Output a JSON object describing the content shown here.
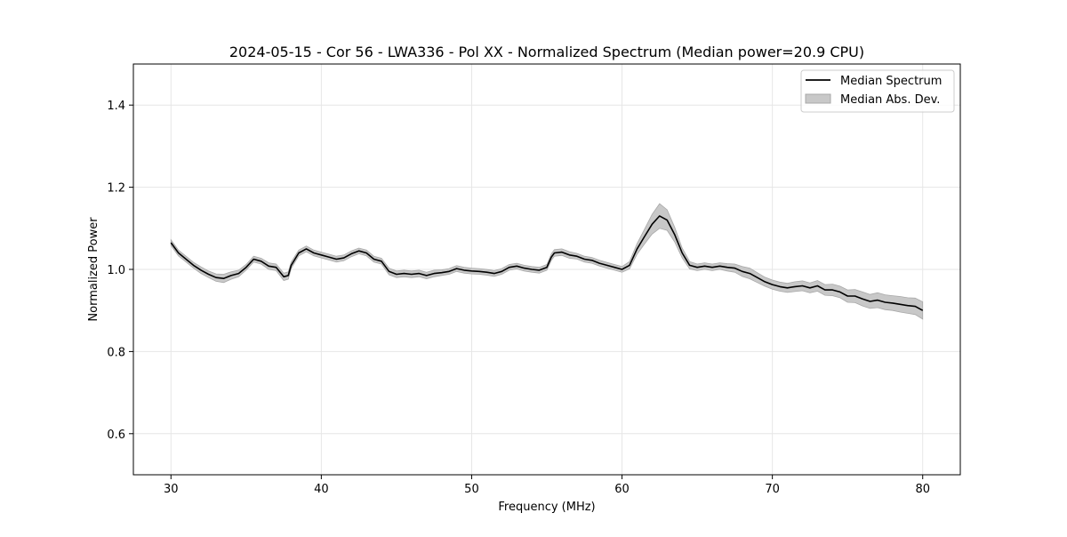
{
  "chart_data": {
    "type": "line",
    "title": "2024-05-15 - Cor 56 - LWA336 - Pol XX - Normalized Spectrum (Median power=20.9 CPU)",
    "xlabel": "Frequency (MHz)",
    "ylabel": "Normalized Power",
    "xlim": [
      27.5,
      82.5
    ],
    "ylim": [
      0.5,
      1.5
    ],
    "xticks": [
      30,
      40,
      50,
      60,
      70,
      80
    ],
    "yticks": [
      0.6,
      0.8,
      1.0,
      1.2,
      1.4
    ],
    "xtick_labels": [
      "30",
      "40",
      "50",
      "60",
      "70",
      "80"
    ],
    "ytick_labels": [
      "0.6",
      "0.8",
      "1.0",
      "1.2",
      "1.4"
    ],
    "grid": true,
    "legend_position": "top-right",
    "legend": [
      "Median Spectrum",
      "Median Abs. Dev."
    ],
    "colors": {
      "line": "#000000",
      "band": "#c8c8c8",
      "band_edge": "#a8a8a8",
      "grid": "#e6e6e6"
    },
    "series": [
      {
        "name": "Median Spectrum",
        "kind": "line",
        "x": [
          30.0,
          30.5,
          31.0,
          31.5,
          32.0,
          32.5,
          33.0,
          33.5,
          34.0,
          34.5,
          35.0,
          35.5,
          36.0,
          36.5,
          37.0,
          37.5,
          37.8,
          38.0,
          38.5,
          39.0,
          39.5,
          40.0,
          40.5,
          41.0,
          41.5,
          42.0,
          42.5,
          43.0,
          43.5,
          44.0,
          44.5,
          45.0,
          45.5,
          46.0,
          46.5,
          47.0,
          47.5,
          48.0,
          48.5,
          49.0,
          49.5,
          50.0,
          50.5,
          51.0,
          51.5,
          52.0,
          52.5,
          53.0,
          53.5,
          54.0,
          54.5,
          55.0,
          55.3,
          55.5,
          56.0,
          56.5,
          57.0,
          57.5,
          58.0,
          58.5,
          59.0,
          59.5,
          60.0,
          60.5,
          61.0,
          61.5,
          62.0,
          62.5,
          63.0,
          63.5,
          64.0,
          64.5,
          65.0,
          65.5,
          66.0,
          66.5,
          67.0,
          67.5,
          68.0,
          68.5,
          69.0,
          69.5,
          70.0,
          70.5,
          71.0,
          71.5,
          72.0,
          72.5,
          73.0,
          73.5,
          74.0,
          74.5,
          75.0,
          75.5,
          76.0,
          76.5,
          77.0,
          77.5,
          78.0,
          78.5,
          79.0,
          79.5,
          80.0
        ],
        "y": [
          1.065,
          1.04,
          1.025,
          1.01,
          0.998,
          0.988,
          0.98,
          0.978,
          0.985,
          0.99,
          1.005,
          1.025,
          1.02,
          1.008,
          1.005,
          0.982,
          0.985,
          1.01,
          1.04,
          1.05,
          1.04,
          1.035,
          1.03,
          1.025,
          1.028,
          1.038,
          1.045,
          1.04,
          1.025,
          1.02,
          0.995,
          0.988,
          0.99,
          0.988,
          0.99,
          0.985,
          0.99,
          0.992,
          0.995,
          1.002,
          0.998,
          0.996,
          0.995,
          0.993,
          0.99,
          0.995,
          1.005,
          1.008,
          1.003,
          1.0,
          0.998,
          1.005,
          1.03,
          1.04,
          1.042,
          1.035,
          1.032,
          1.025,
          1.022,
          1.015,
          1.01,
          1.005,
          1.0,
          1.01,
          1.05,
          1.08,
          1.11,
          1.13,
          1.12,
          1.085,
          1.04,
          1.01,
          1.005,
          1.008,
          1.005,
          1.008,
          1.005,
          1.003,
          0.995,
          0.99,
          0.98,
          0.97,
          0.963,
          0.958,
          0.955,
          0.958,
          0.96,
          0.955,
          0.96,
          0.95,
          0.95,
          0.945,
          0.935,
          0.935,
          0.928,
          0.922,
          0.925,
          0.92,
          0.918,
          0.915,
          0.912,
          0.91,
          0.9
        ]
      },
      {
        "name": "Median Abs. Dev.",
        "kind": "band",
        "x": [
          30.0,
          30.5,
          31.0,
          31.5,
          32.0,
          32.5,
          33.0,
          33.5,
          34.0,
          34.5,
          35.0,
          35.5,
          36.0,
          36.5,
          37.0,
          37.5,
          37.8,
          38.0,
          38.5,
          39.0,
          39.5,
          40.0,
          40.5,
          41.0,
          41.5,
          42.0,
          42.5,
          43.0,
          43.5,
          44.0,
          44.5,
          45.0,
          45.5,
          46.0,
          46.5,
          47.0,
          47.5,
          48.0,
          48.5,
          49.0,
          49.5,
          50.0,
          50.5,
          51.0,
          51.5,
          52.0,
          52.5,
          53.0,
          53.5,
          54.0,
          54.5,
          55.0,
          55.3,
          55.5,
          56.0,
          56.5,
          57.0,
          57.5,
          58.0,
          58.5,
          59.0,
          59.5,
          60.0,
          60.5,
          61.0,
          61.5,
          62.0,
          62.5,
          63.0,
          63.5,
          64.0,
          64.5,
          65.0,
          65.5,
          66.0,
          66.5,
          67.0,
          67.5,
          68.0,
          68.5,
          69.0,
          69.5,
          70.0,
          70.5,
          71.0,
          71.5,
          72.0,
          72.5,
          73.0,
          73.5,
          74.0,
          74.5,
          75.0,
          75.5,
          76.0,
          76.5,
          77.0,
          77.5,
          78.0,
          78.5,
          79.0,
          79.5,
          80.0
        ],
        "dev": [
          0.007,
          0.007,
          0.007,
          0.007,
          0.008,
          0.008,
          0.009,
          0.01,
          0.009,
          0.008,
          0.007,
          0.007,
          0.007,
          0.008,
          0.008,
          0.009,
          0.009,
          0.008,
          0.007,
          0.007,
          0.007,
          0.007,
          0.007,
          0.007,
          0.007,
          0.007,
          0.007,
          0.007,
          0.007,
          0.007,
          0.008,
          0.008,
          0.008,
          0.008,
          0.008,
          0.008,
          0.008,
          0.007,
          0.007,
          0.007,
          0.007,
          0.007,
          0.007,
          0.007,
          0.007,
          0.007,
          0.007,
          0.007,
          0.007,
          0.007,
          0.007,
          0.007,
          0.008,
          0.008,
          0.008,
          0.008,
          0.007,
          0.007,
          0.007,
          0.007,
          0.007,
          0.007,
          0.007,
          0.009,
          0.013,
          0.018,
          0.024,
          0.03,
          0.025,
          0.018,
          0.012,
          0.009,
          0.008,
          0.008,
          0.008,
          0.008,
          0.009,
          0.01,
          0.012,
          0.013,
          0.012,
          0.011,
          0.011,
          0.011,
          0.011,
          0.012,
          0.012,
          0.012,
          0.013,
          0.013,
          0.014,
          0.014,
          0.015,
          0.016,
          0.017,
          0.017,
          0.018,
          0.018,
          0.018,
          0.019,
          0.019,
          0.02,
          0.021
        ]
      }
    ]
  }
}
